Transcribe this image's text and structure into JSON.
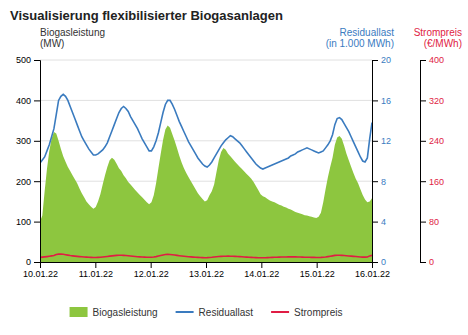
{
  "chart_data": {
    "type": "line",
    "title": "Visualisierung flexibilisierter Biogasanlagen",
    "ylabel": [
      "Biogasleistung",
      "(MW)"
    ],
    "y2label": [
      "Residuallast",
      "(in 1.000 MWh)"
    ],
    "y3label": [
      "Strompreis",
      "(€/MWh)"
    ],
    "x": [
      0,
      0.042,
      0.0839,
      0.1259,
      0.1678,
      0.2098,
      0.2517,
      0.2937,
      0.3357,
      0.3776,
      0.4196,
      0.4615,
      0.5035,
      0.5455,
      0.5874,
      0.6294,
      0.6713,
      0.7133,
      0.7552,
      0.7972,
      0.8392,
      0.8811,
      0.9231,
      0.965,
      1.007,
      1.049,
      1.0909,
      1.1329,
      1.1748,
      1.2168,
      1.2587,
      1.3007,
      1.3427,
      1.3846,
      1.4266,
      1.4685,
      1.5105,
      1.5524,
      1.5944,
      1.6364,
      1.6783,
      1.7203,
      1.7622,
      1.8042,
      1.8462,
      1.8881,
      1.9301,
      1.972,
      2.014,
      2.0559,
      2.0979,
      2.1399,
      2.1818,
      2.2238,
      2.2657,
      2.3077,
      2.3497,
      2.3916,
      2.4336,
      2.4755,
      2.5175,
      2.5594,
      2.6014,
      2.6434,
      2.6853,
      2.7273,
      2.7692,
      2.8112,
      2.8531,
      2.8951,
      2.9371,
      2.979,
      3.021,
      3.0629,
      3.1049,
      3.1469,
      3.1888,
      3.2308,
      3.2727,
      3.3147,
      3.3566,
      3.3986,
      3.4406,
      3.4825,
      3.5245,
      3.5664,
      3.6084,
      3.6503,
      3.6923,
      3.7343,
      3.7762,
      3.8182,
      3.8601,
      3.9021,
      3.9441,
      3.986,
      4.028,
      4.0699,
      4.1119,
      4.1538,
      4.1958,
      4.2378,
      4.2797,
      4.3217,
      4.3636,
      4.4056,
      4.4476,
      4.4895,
      4.5315,
      4.5734,
      4.6154,
      4.6573,
      4.6993,
      4.7413,
      4.7832,
      4.8252,
      4.8671,
      4.9091,
      4.951,
      4.993,
      5.035,
      5.0769,
      5.1189,
      5.1608,
      5.2028,
      5.2448,
      5.2867,
      5.3287,
      5.3706,
      5.4126,
      5.4545,
      5.4965,
      5.5385,
      5.5804,
      5.6224,
      5.6643,
      5.7063,
      5.7483,
      5.7902,
      5.8322,
      5.8741,
      5.9161,
      5.958,
      6
    ],
    "xlim": [
      0,
      6
    ],
    "xticks": [
      {
        "value": 0,
        "label": "10.01.22"
      },
      {
        "value": 1,
        "label": "11.01.22"
      },
      {
        "value": 2,
        "label": "12.01.22"
      },
      {
        "value": 3,
        "label": "13.01.22"
      },
      {
        "value": 4,
        "label": "14.01.22"
      },
      {
        "value": 5,
        "label": "15.01.22"
      },
      {
        "value": 6,
        "label": "16.01.22"
      }
    ],
    "ylim": [
      0,
      500
    ],
    "yticks": [
      0,
      100,
      200,
      300,
      400,
      500
    ],
    "y2lim": [
      0,
      20
    ],
    "y2ticks": [
      0,
      4,
      8,
      12,
      16,
      20
    ],
    "y3lim": [
      0,
      400
    ],
    "y3ticks": [
      0,
      80,
      160,
      240,
      320,
      400
    ],
    "grid": true,
    "legend": "bottom",
    "series": [
      {
        "name": "Biogasleistung",
        "type": "area",
        "color": "#8dc63f",
        "values": [
          100,
          115,
          175,
          230,
          275,
          305,
          322,
          318,
          300,
          280,
          262,
          248,
          235,
          225,
          215,
          205,
          195,
          182,
          170,
          160,
          150,
          143,
          137,
          132,
          136,
          150,
          168,
          192,
          215,
          235,
          252,
          258,
          253,
          243,
          232,
          225,
          215,
          207,
          198,
          192,
          185,
          178,
          172,
          166,
          160,
          154,
          148,
          143,
          148,
          165,
          195,
          232,
          268,
          302,
          328,
          338,
          332,
          316,
          300,
          282,
          263,
          246,
          232,
          220,
          210,
          200,
          190,
          180,
          170,
          163,
          156,
          150,
          153,
          165,
          175,
          192,
          222,
          252,
          272,
          282,
          278,
          268,
          262,
          255,
          248,
          242,
          236,
          230,
          224,
          218,
          212,
          206,
          198,
          188,
          178,
          168,
          163,
          160,
          156,
          152,
          150,
          148,
          145,
          142,
          140,
          137,
          135,
          132,
          130,
          127,
          124,
          122,
          120,
          118,
          116,
          115,
          113,
          112,
          110,
          109,
          112,
          122,
          148,
          180,
          210,
          235,
          258,
          290,
          308,
          312,
          305,
          288,
          268,
          252,
          236,
          220,
          206,
          195,
          180,
          166,
          155,
          148,
          150,
          158
        ]
      },
      {
        "name": "Residuallast",
        "type": "line",
        "color": "#3a7bbf",
        "axis": "y2",
        "values": [
          9.8,
          10.1,
          10.4,
          11.0,
          11.6,
          12.4,
          13.2,
          14.6,
          16.0,
          16.4,
          16.6,
          16.4,
          16.0,
          15.4,
          14.8,
          14.2,
          13.6,
          13.0,
          12.4,
          12.0,
          11.6,
          11.2,
          10.9,
          10.6,
          10.6,
          10.7,
          10.9,
          11.1,
          11.4,
          11.8,
          12.4,
          13.0,
          13.6,
          14.2,
          14.8,
          15.2,
          15.4,
          15.2,
          14.9,
          14.4,
          14.0,
          13.6,
          13.2,
          12.7,
          12.2,
          11.8,
          11.4,
          11.0,
          11.0,
          11.4,
          12.0,
          12.8,
          13.8,
          14.8,
          15.6,
          16.0,
          16.0,
          15.6,
          15.1,
          14.5,
          13.9,
          13.4,
          12.9,
          12.4,
          11.9,
          11.5,
          11.1,
          10.7,
          10.3,
          10.0,
          9.7,
          9.5,
          9.4,
          9.6,
          9.9,
          10.3,
          10.7,
          11.1,
          11.5,
          11.8,
          12.1,
          12.3,
          12.5,
          12.4,
          12.2,
          12.0,
          11.8,
          11.5,
          11.2,
          10.9,
          10.6,
          10.3,
          10.0,
          9.7,
          9.5,
          9.3,
          9.2,
          9.3,
          9.4,
          9.5,
          9.6,
          9.7,
          9.8,
          9.9,
          10.0,
          10.1,
          10.2,
          10.3,
          10.5,
          10.6,
          10.7,
          10.9,
          11.0,
          11.1,
          11.2,
          11.3,
          11.2,
          11.1,
          11.0,
          10.9,
          10.8,
          10.9,
          11.0,
          11.3,
          11.6,
          12.0,
          12.6,
          13.6,
          14.2,
          14.3,
          14.1,
          13.7,
          13.3,
          12.9,
          12.4,
          11.9,
          11.4,
          10.9,
          10.4,
          10.0,
          9.9,
          10.3,
          12.2,
          13.8
        ]
      },
      {
        "name": "Strompreis",
        "type": "line",
        "color": "#e01c44",
        "axis": "y3",
        "values": [
          9.2,
          9.6,
          10.1,
          10.7,
          11.4,
          12.2,
          12.8,
          15.0,
          15.6,
          15.6,
          15.2,
          14.4,
          13.6,
          12.8,
          12.2,
          11.6,
          11.1,
          10.7,
          10.3,
          9.9,
          9.6,
          9.3,
          9.1,
          8.9,
          9.0,
          9.2,
          9.5,
          9.9,
          10.4,
          11.0,
          11.6,
          12.2,
          12.7,
          13.1,
          13.4,
          13.4,
          13.2,
          12.8,
          12.3,
          11.8,
          11.3,
          10.9,
          10.5,
          10.2,
          9.9,
          9.7,
          9.5,
          9.3,
          9.4,
          9.9,
          10.7,
          11.8,
          12.9,
          13.9,
          14.7,
          15.1,
          15.0,
          14.4,
          13.8,
          13.1,
          12.4,
          11.8,
          11.3,
          10.9,
          10.5,
          10.1,
          9.7,
          9.4,
          9.1,
          8.9,
          8.7,
          8.5,
          8.6,
          8.9,
          9.3,
          9.8,
          10.3,
          10.8,
          11.2,
          11.4,
          11.5,
          11.6,
          11.5,
          11.4,
          11.2,
          10.9,
          10.6,
          10.3,
          10.0,
          9.7,
          9.4,
          9.1,
          8.9,
          8.7,
          8.5,
          8.3,
          8.3,
          8.5,
          8.7,
          9.0,
          9.2,
          9.4,
          9.5,
          9.7,
          9.8,
          9.9,
          10.0,
          10.1,
          10.2,
          10.2,
          10.1,
          9.9,
          9.8,
          9.7,
          9.5,
          9.4,
          9.3,
          9.2,
          9.1,
          9.0,
          9.0,
          9.1,
          9.4,
          9.9,
          10.6,
          11.4,
          12.2,
          13.1,
          13.4,
          13.4,
          13.2,
          12.8,
          12.4,
          12.0,
          11.6,
          11.2,
          10.8,
          10.4,
          10.0,
          9.7,
          9.6,
          10.0,
          12.1,
          13.2
        ]
      }
    ]
  }
}
